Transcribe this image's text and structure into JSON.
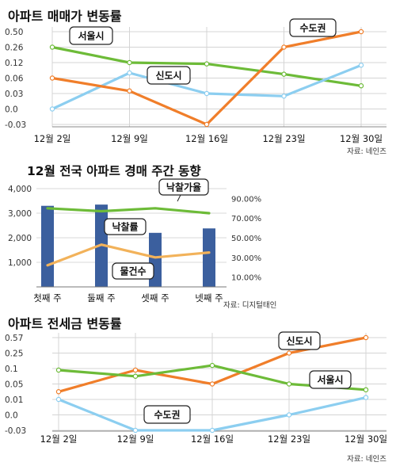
{
  "chart_data": [
    {
      "type": "line",
      "title": "아파트 매매가 변동률",
      "source": "자료: 네인즈",
      "categories": [
        "12월 2일",
        "12월 9일",
        "12월 16일",
        "12월 23일",
        "12월 30일"
      ],
      "y_tick_labels": [
        "0.50",
        "0.26",
        "0.12",
        "0.06",
        "0.03",
        "0.0",
        "-0.03"
      ],
      "series": [
        {
          "name": "서울시",
          "color": "#6dbb38",
          "values": [
            0.26,
            0.12,
            0.115,
            0.075,
            0.045
          ]
        },
        {
          "name": "신도시",
          "color": "#8ccef0",
          "values": [
            0.0,
            0.08,
            0.03,
            0.025,
            0.11
          ]
        },
        {
          "name": "수도권",
          "color": "#f07e2a",
          "values": [
            0.06,
            0.035,
            -0.03,
            0.26,
            0.5
          ]
        }
      ],
      "grid": true,
      "legend": "inline-labels"
    },
    {
      "type": "bar",
      "title": "12월 전국 아파트 경매 주간 동향",
      "source": "자료: 디지털태인",
      "categories": [
        "첫째 주",
        "둘째 주",
        "셋째 주",
        "넷째 주"
      ],
      "y_left_ticks": [
        "4,000",
        "3,000",
        "2,000",
        "1,000"
      ],
      "y_right_ticks": [
        "90.00%",
        "70.00%",
        "50.00%",
        "30.00%",
        "10.00%"
      ],
      "ylim_left": [
        0,
        4000
      ],
      "ylim_right": [
        0,
        100
      ],
      "series": [
        {
          "name": "물건수",
          "kind": "bar",
          "axis": "left",
          "color": "#3b5f9e",
          "values": [
            3300,
            3350,
            2200,
            2380
          ]
        },
        {
          "name": "낙찰가율",
          "kind": "line",
          "axis": "right",
          "color": "#6dbb38",
          "values": [
            80,
            77,
            80,
            75
          ]
        },
        {
          "name": "낙찰률",
          "kind": "line",
          "axis": "right",
          "color": "#f2b25a",
          "values": [
            22,
            43,
            30,
            35
          ]
        }
      ]
    },
    {
      "type": "line",
      "title": "아파트 전세금 변동률",
      "source": "자료: 네인즈",
      "categories": [
        "12월 2일",
        "12월 9일",
        "12월 16일",
        "12월 23일",
        "12월 30일"
      ],
      "y_tick_labels": [
        "0.57",
        "0.25",
        "0.1",
        "0.05",
        "0.01",
        "0.0",
        "-0.03"
      ],
      "series": [
        {
          "name": "신도시",
          "color": "#f07e2a",
          "values": [
            0.03,
            0.095,
            0.05,
            0.25,
            0.57
          ]
        },
        {
          "name": "서울시",
          "color": "#6dbb38",
          "values": [
            0.095,
            0.075,
            0.13,
            0.05,
            0.035
          ]
        },
        {
          "name": "수도권",
          "color": "#8ccef0",
          "values": [
            0.01,
            -0.03,
            -0.03,
            0.0,
            0.015
          ]
        }
      ],
      "grid": true,
      "legend": "inline-labels"
    }
  ]
}
